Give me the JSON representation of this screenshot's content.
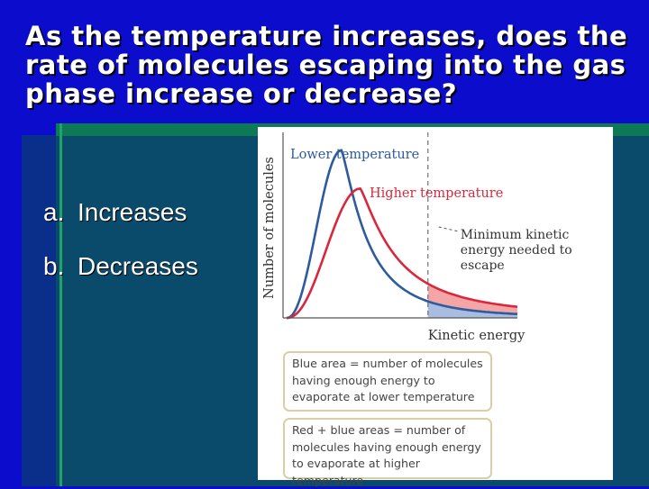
{
  "slide": {
    "question": "As the temperature increases, does the rate of molecules escaping into the gas phase increase or decrease?",
    "options": [
      {
        "letter": "a.",
        "text": "Increases"
      },
      {
        "letter": "b.",
        "text": "Decreases"
      }
    ]
  },
  "chart_data": {
    "type": "line",
    "title": "",
    "xlabel": "Kinetic energy",
    "ylabel": "Number of molecules",
    "series": [
      {
        "name": "Lower temperature",
        "color": "#2e5a9e",
        "peak_x": 0.38,
        "peak_y": 0.96,
        "width": 0.12,
        "tail": 0.18
      },
      {
        "name": "Higher temperature",
        "color": "#d9283c",
        "peak_x": 0.51,
        "peak_y": 0.74,
        "width": 0.17,
        "tail": 0.26
      }
    ],
    "threshold": {
      "x": 0.98,
      "label": "Minimum kinetic energy needed to escape"
    },
    "annotations": [
      "Blue area = number of molecules having enough energy to evaporate at lower temperature",
      "Red + blue areas = number of molecules having enough energy to evaporate at higher temperature"
    ],
    "fill_colors": {
      "blue_area": "#a9bde0",
      "red_area": "#f4a6a6"
    },
    "xlim": [
      0,
      1.6
    ],
    "ylim": [
      0,
      1
    ],
    "grid": false
  }
}
